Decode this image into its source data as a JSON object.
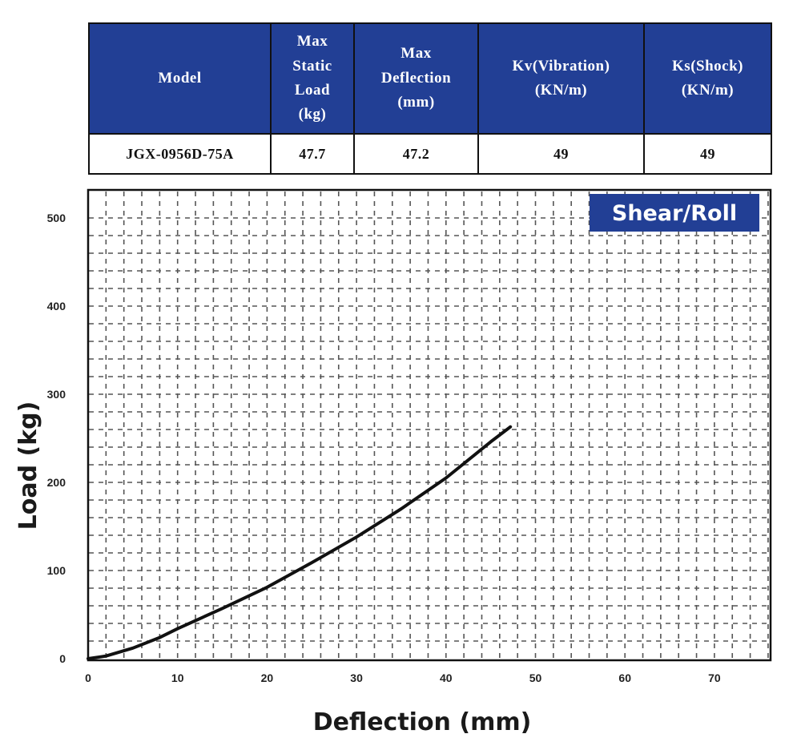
{
  "table": {
    "headers": [
      "Model",
      "Max\nStatic\nLoad\n(kg)",
      "Max\nDeflection\n(mm)",
      "Kv(Vibration)\n(KN/m)",
      "Ks(Shock)\n(KN/m)"
    ],
    "row": [
      "JGX-0956D-75A",
      "47.7",
      "47.2",
      "49",
      "49"
    ]
  },
  "colors": {
    "header_bg": "#223f95",
    "badge_bg": "#223f95",
    "curve": "#111111"
  },
  "chart_data": {
    "type": "line",
    "badge": "Shear/Roll",
    "xlabel": "Deflection (mm)",
    "ylabel": "Load (kg)",
    "xlim": [
      0,
      76
    ],
    "ylim": [
      0,
      510
    ],
    "xticks": [
      "0",
      "10",
      "20",
      "30",
      "40",
      "50",
      "60",
      "70"
    ],
    "yticks": [
      "0",
      "100",
      "200",
      "300",
      "400",
      "500"
    ],
    "grid": true,
    "series": [
      {
        "x": [
          0,
          2,
          5,
          8,
          10,
          15,
          20,
          25,
          30,
          35,
          40,
          45,
          47.2
        ],
        "y": [
          0,
          3,
          12,
          24,
          34,
          57,
          81,
          109,
          138,
          170,
          205,
          246,
          263
        ]
      }
    ]
  }
}
